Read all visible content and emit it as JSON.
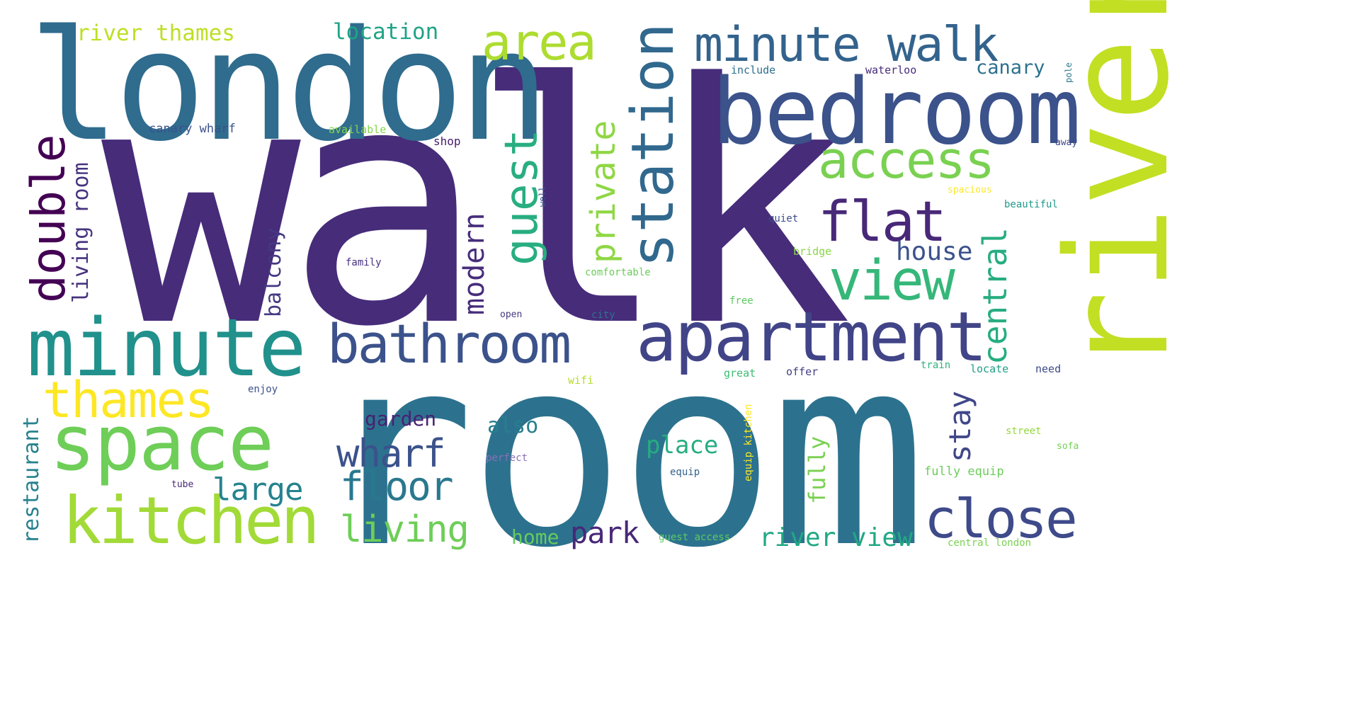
{
  "cloud": {
    "words": [
      {
        "text": "walk",
        "color": "#472c7a"
      },
      {
        "text": "room",
        "color": "#2c728e"
      },
      {
        "text": "london",
        "color": "#2f6c8e"
      },
      {
        "text": "river",
        "color": "#c2df23"
      },
      {
        "text": "bedroom",
        "color": "#3b528b"
      },
      {
        "text": "minute",
        "color": "#21918c"
      },
      {
        "text": "apartment",
        "color": "#414487"
      },
      {
        "text": "space",
        "color": "#6ece58"
      },
      {
        "text": "kitchen",
        "color": "#a2da37"
      },
      {
        "text": "bathroom",
        "color": "#3b528b"
      },
      {
        "text": "minute walk",
        "color": "#33638d"
      },
      {
        "text": "station",
        "color": "#31688e"
      },
      {
        "text": "area",
        "color": "#addc30"
      },
      {
        "text": "access",
        "color": "#7ad151"
      },
      {
        "text": "flat",
        "color": "#482878"
      },
      {
        "text": "view",
        "color": "#35b779"
      },
      {
        "text": "thames",
        "color": "#fde725"
      },
      {
        "text": "close",
        "color": "#3e4a89"
      },
      {
        "text": "double",
        "color": "#440154"
      },
      {
        "text": "guest",
        "color": "#28ae80"
      },
      {
        "text": "private",
        "color": "#8fd744"
      },
      {
        "text": "wharf",
        "color": "#3b528b"
      },
      {
        "text": "floor",
        "color": "#2a788e"
      },
      {
        "text": "living",
        "color": "#6ece58"
      },
      {
        "text": "large",
        "color": "#25838e"
      },
      {
        "text": "park",
        "color": "#482878"
      },
      {
        "text": "river view",
        "color": "#22a884"
      },
      {
        "text": "central",
        "color": "#27ad81"
      },
      {
        "text": "modern",
        "color": "#472d7b"
      },
      {
        "text": "stay",
        "color": "#404688"
      },
      {
        "text": "house",
        "color": "#3b528b"
      },
      {
        "text": "living room",
        "color": "#46337e"
      },
      {
        "text": "balcony",
        "color": "#443983"
      },
      {
        "text": "river thames",
        "color": "#bddf26"
      },
      {
        "text": "location",
        "color": "#20a386"
      },
      {
        "text": "canary",
        "color": "#2d708e"
      },
      {
        "text": "restaurant",
        "color": "#26828e"
      },
      {
        "text": "garden",
        "color": "#482173"
      },
      {
        "text": "also",
        "color": "#277f8e"
      },
      {
        "text": "place",
        "color": "#26ad81"
      },
      {
        "text": "fully",
        "color": "#7ad151"
      },
      {
        "text": "home",
        "color": "#65cb5e"
      },
      {
        "text": "canary wharf",
        "color": "#3b528b"
      },
      {
        "text": "available",
        "color": "#84d44b"
      },
      {
        "text": "shop",
        "color": "#481a6c"
      },
      {
        "text": "include",
        "color": "#2e6f8e"
      },
      {
        "text": "waterloo",
        "color": "#472c7a"
      },
      {
        "text": "pole",
        "color": "#2a788e"
      },
      {
        "text": "away",
        "color": "#3f4788"
      },
      {
        "text": "spacious",
        "color": "#fde725"
      },
      {
        "text": "beautiful",
        "color": "#1f9a8a"
      },
      {
        "text": "quiet",
        "color": "#3e4c8a"
      },
      {
        "text": "bridge",
        "color": "#8bd646"
      },
      {
        "text": "comfortable",
        "color": "#6ccd5a"
      },
      {
        "text": "well",
        "color": "#3b528b"
      },
      {
        "text": "family",
        "color": "#46327e"
      },
      {
        "text": "free",
        "color": "#5ec962"
      },
      {
        "text": "open",
        "color": "#443a83"
      },
      {
        "text": "city",
        "color": "#2c728e"
      },
      {
        "text": "enjoy",
        "color": "#3b528b"
      },
      {
        "text": "wifi",
        "color": "#b5de2b"
      },
      {
        "text": "great",
        "color": "#3dbc74"
      },
      {
        "text": "offer",
        "color": "#433e85"
      },
      {
        "text": "train",
        "color": "#2fb47c"
      },
      {
        "text": "locate",
        "color": "#1fa088"
      },
      {
        "text": "need",
        "color": "#3e4a89"
      },
      {
        "text": "equip kitchen",
        "color": "#fde725"
      },
      {
        "text": "perfect",
        "color": "#8b6fba"
      },
      {
        "text": "equip",
        "color": "#33638d"
      },
      {
        "text": "tube",
        "color": "#482878"
      },
      {
        "text": "street",
        "color": "#95d840"
      },
      {
        "text": "sofa",
        "color": "#73d056"
      },
      {
        "text": "fully equip",
        "color": "#6ccd5a"
      },
      {
        "text": "guest access",
        "color": "#5ec962"
      },
      {
        "text": "central london",
        "color": "#7ad151"
      }
    ]
  }
}
